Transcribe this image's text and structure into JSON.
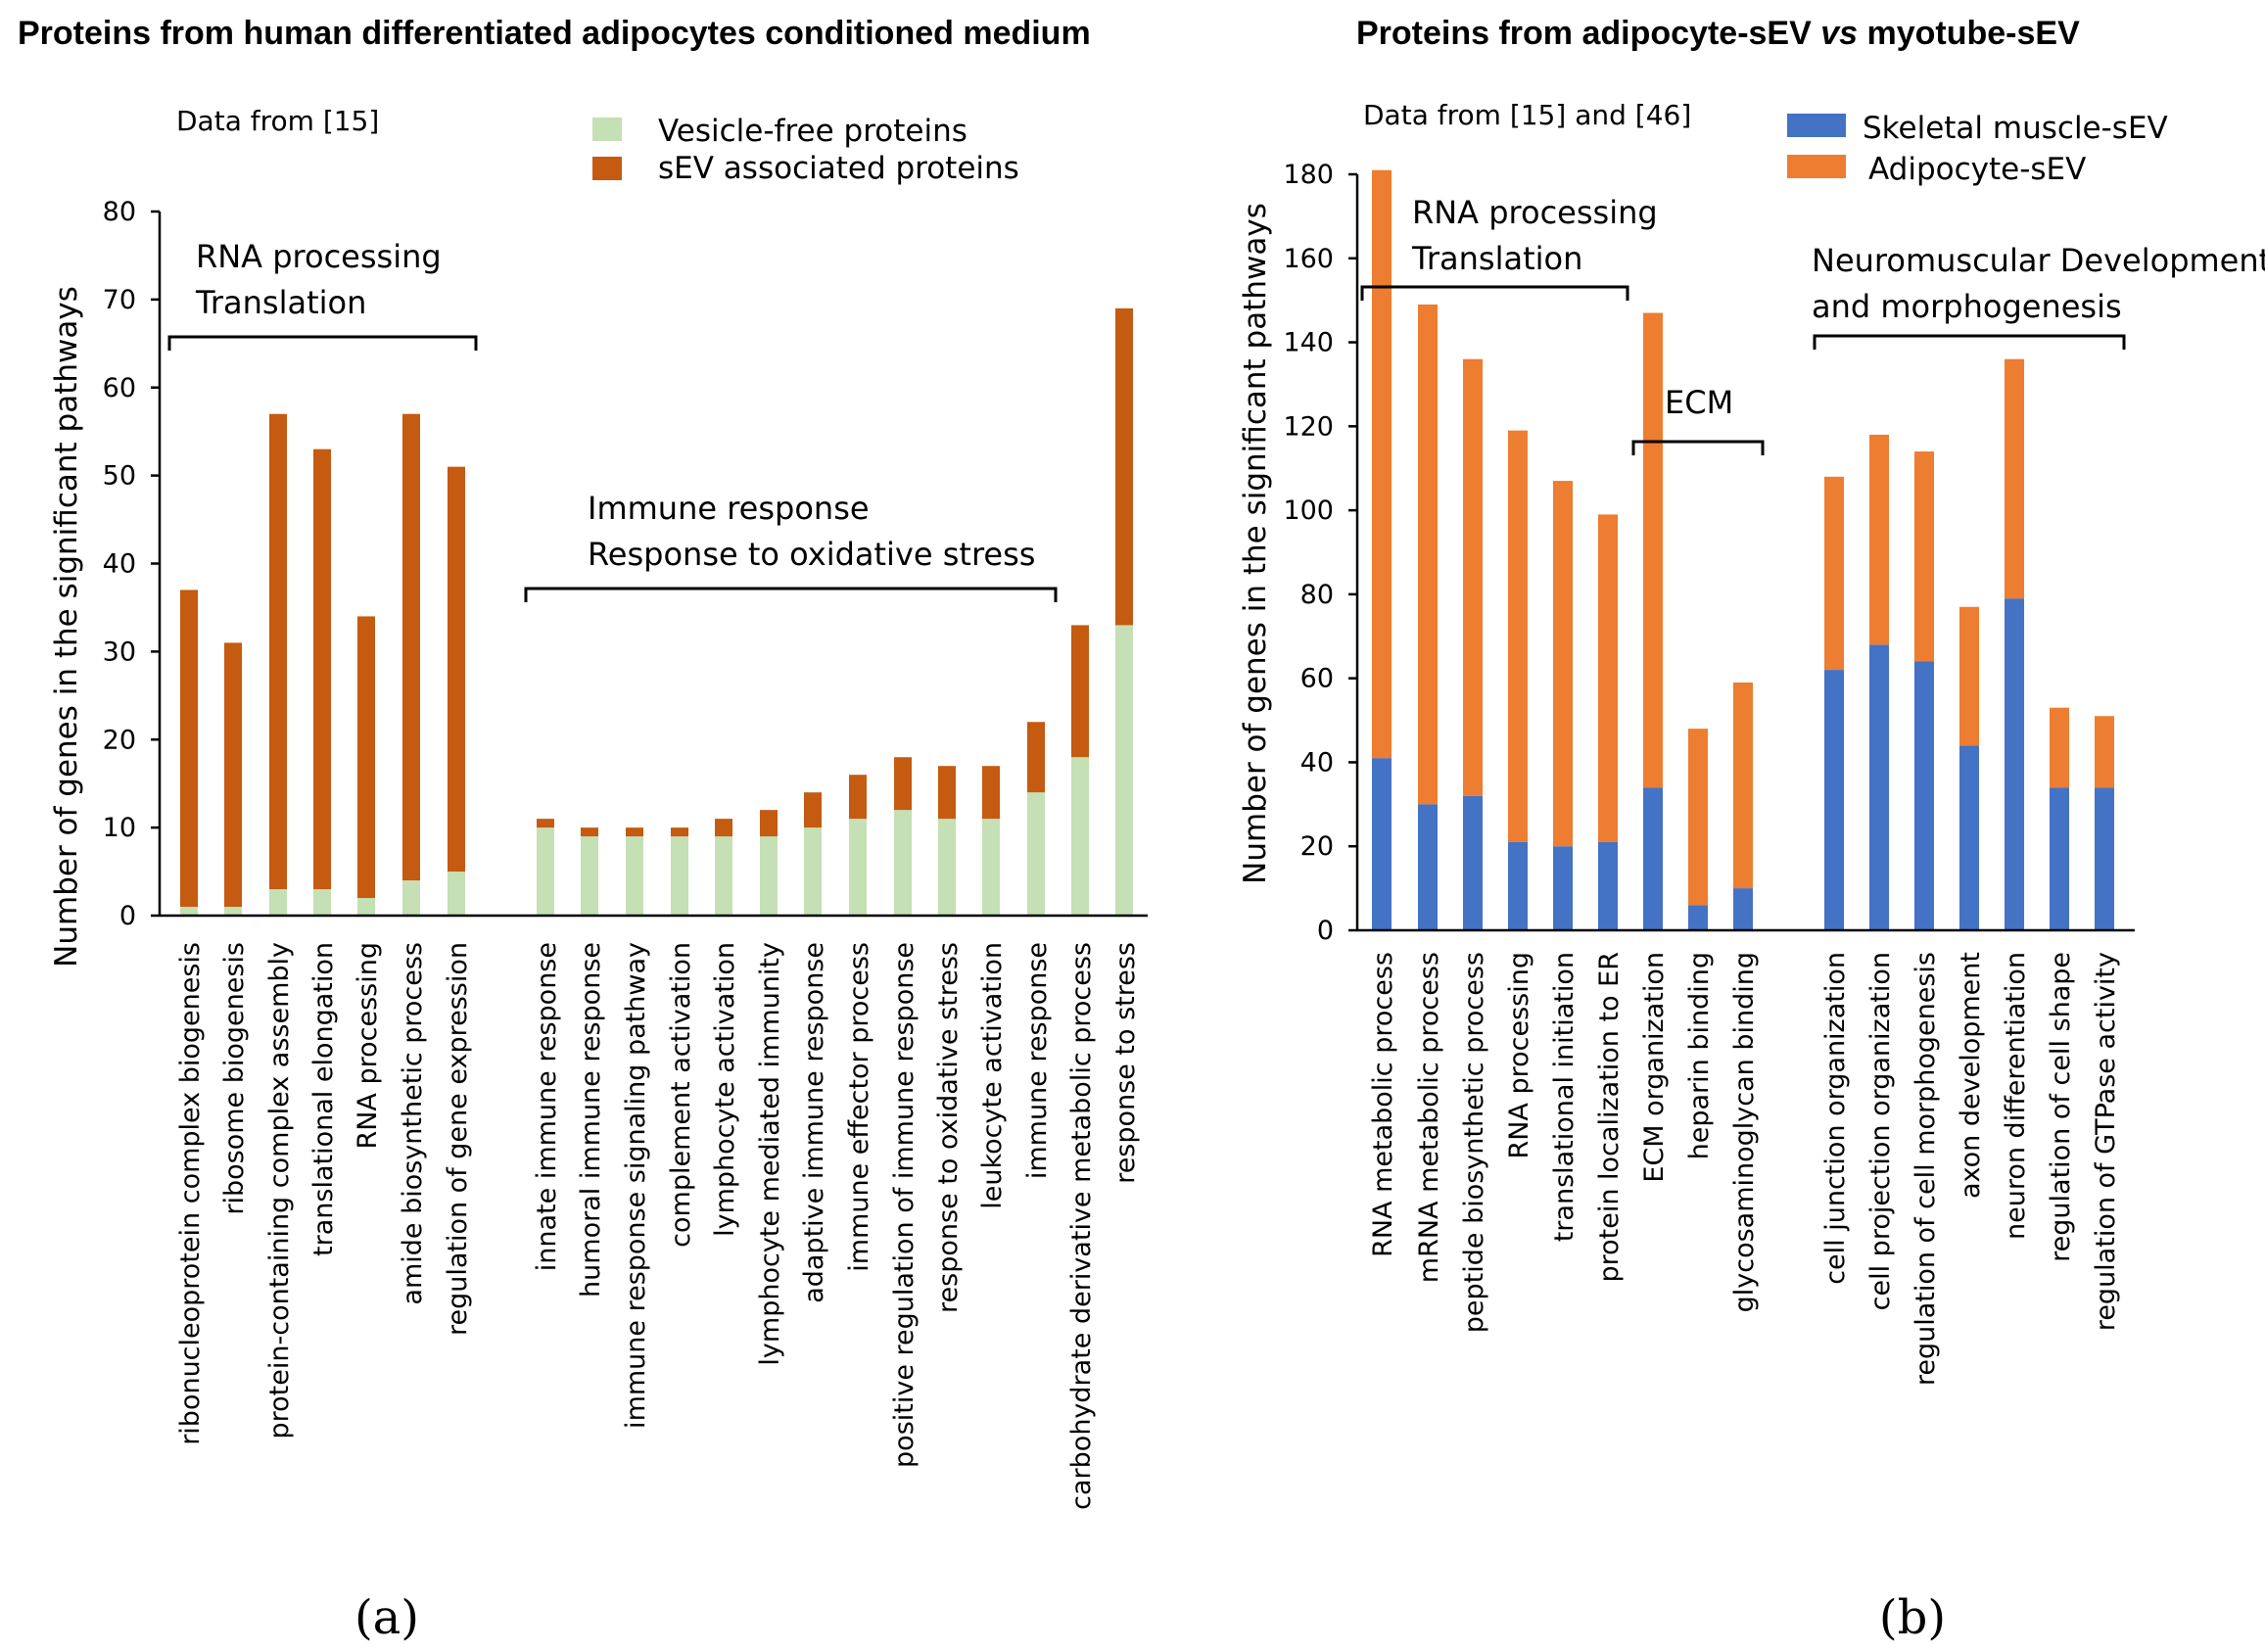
{
  "chart_data": [
    {
      "type": "bar",
      "stacked": true,
      "panel_label": "(a)",
      "title": "Proteins from human differentiated adipocytes conditioned medium",
      "data_note": "Data from [15]",
      "ylabel": "Number of genes in the significant pathways",
      "ylim": [
        0,
        80
      ],
      "yticks": [
        0,
        10,
        20,
        30,
        40,
        50,
        60,
        70,
        80
      ],
      "colors": {
        "vesicle_free": "#c5e0b4",
        "sev": "#c55a11"
      },
      "legend": [
        "Vesicle-free proteins",
        "sEV associated proteins"
      ],
      "categories": [
        "ribonucleoprotein complex biogenesis",
        "ribosome biogenesis",
        "protein-containing complex assembly",
        "translational elongation",
        "RNA processing",
        "amide biosynthetic process",
        "regulation of gene expression",
        "innate immune response",
        "humoral immune response",
        "immune response signaling pathway",
        "complement activation",
        "lymphocyte activation",
        "lymphocyte mediated immunity",
        "adaptive immune response",
        "immune effector process",
        "positive regulation of immune response",
        "response to oxidative stress",
        "leukocyte activation",
        "immune response",
        "carbohydrate derivative metabolic process",
        "response to stress"
      ],
      "series": [
        {
          "name": "Vesicle-free proteins",
          "values": [
            1,
            1,
            3,
            3,
            2,
            4,
            5,
            10,
            9,
            9,
            9,
            9,
            9,
            10,
            11,
            12,
            11,
            11,
            14,
            18,
            33
          ]
        },
        {
          "name": "sEV associated proteins",
          "values": [
            36,
            30,
            54,
            50,
            32,
            53,
            46,
            1,
            1,
            1,
            1,
            2,
            3,
            4,
            5,
            6,
            6,
            6,
            8,
            15,
            36
          ]
        }
      ],
      "annotations": [
        {
          "lines": [
            "RNA processing",
            "Translation"
          ],
          "from": 0,
          "to": 6
        },
        {
          "lines": [
            "Immune response",
            "Response to oxidative stress"
          ],
          "from": 7,
          "to": 18
        }
      ]
    },
    {
      "type": "bar",
      "stacked": true,
      "panel_label": "(b)",
      "title_parts": [
        "Proteins from adipocyte-sEV ",
        "vs",
        " myotube-sEV"
      ],
      "data_note": "Data from [15] and [46]",
      "ylabel": "Number of genes in the significant pathways",
      "ylim": [
        0,
        180
      ],
      "yticks": [
        0,
        20,
        40,
        60,
        80,
        100,
        120,
        140,
        160,
        180
      ],
      "colors": {
        "muscle": "#4472c4",
        "adipocyte": "#ed7d31"
      },
      "legend": [
        "Skeletal muscle-sEV",
        "Adipocyte-sEV"
      ],
      "categories": [
        "RNA metabolic process",
        "mRNA metabolic process",
        "peptide biosynthetic process",
        "RNA processing",
        "translational initiation",
        "protein localization to ER",
        "ECM organization",
        "heparin binding",
        "glycosaminoglycan binding",
        "cell junction organization",
        "cell projection organization",
        "regulation of cell morphogenesis",
        "axon development",
        "neuron differentiation",
        "regulation of cell shape",
        "regulation of GTPase activity"
      ],
      "series": [
        {
          "name": "Skeletal muscle-sEV",
          "values": [
            41,
            30,
            32,
            21,
            20,
            21,
            34,
            6,
            10,
            62,
            68,
            64,
            44,
            79,
            34,
            34
          ]
        },
        {
          "name": "Adipocyte-sEV",
          "values": [
            140,
            119,
            104,
            98,
            87,
            78,
            113,
            42,
            49,
            46,
            50,
            50,
            33,
            57,
            19,
            17
          ]
        }
      ],
      "annotations": [
        {
          "lines": [
            "RNA processing",
            "Translation"
          ],
          "from": 0,
          "to": 5
        },
        {
          "lines": [
            "ECM"
          ],
          "from": 6,
          "to": 8
        },
        {
          "lines": [
            "Neuromuscular Development",
            "and morphogenesis"
          ],
          "from": 9,
          "to": 15
        }
      ]
    }
  ]
}
